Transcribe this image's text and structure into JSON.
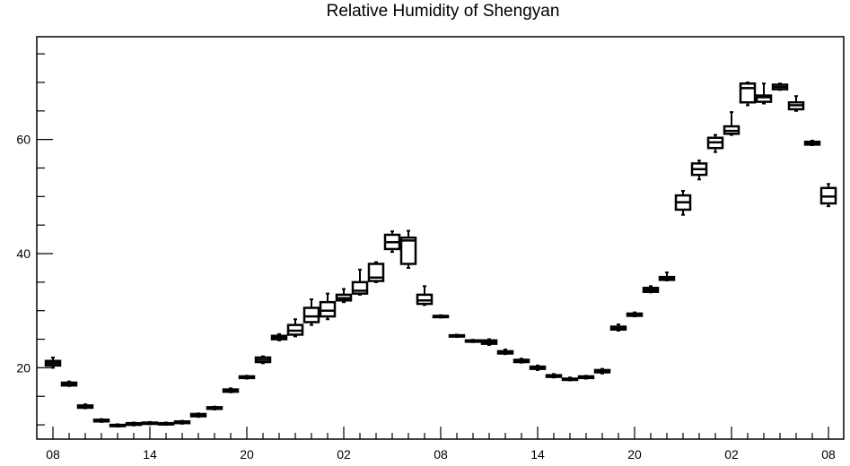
{
  "chart_data": {
    "type": "box",
    "title": "Relative Humidity of Shengyan",
    "xlabel": "",
    "ylabel": "",
    "ylim": [
      7.5,
      78
    ],
    "y_ticks": [
      20,
      40,
      60
    ],
    "y_tick_labels": [
      "20",
      "40",
      "60"
    ],
    "x_tick_labels": [
      "08",
      "14",
      "20",
      "02",
      "08",
      "14",
      "20",
      "02",
      "08"
    ],
    "x_tick_hours": [
      0,
      6,
      12,
      18,
      24,
      30,
      36,
      42,
      48
    ],
    "grid": false,
    "boxes": [
      {
        "x": 0,
        "min": 20.0,
        "q1": 20.4,
        "median": 20.8,
        "q3": 21.2,
        "max": 21.8
      },
      {
        "x": 1,
        "min": 16.8,
        "q1": 16.9,
        "median": 17.1,
        "q3": 17.4,
        "max": 17.6
      },
      {
        "x": 2,
        "min": 12.9,
        "q1": 13.0,
        "median": 13.2,
        "q3": 13.4,
        "max": 13.6
      },
      {
        "x": 3,
        "min": 10.5,
        "q1": 10.6,
        "median": 10.7,
        "q3": 10.9,
        "max": 11.0
      },
      {
        "x": 4,
        "min": 9.7,
        "q1": 9.8,
        "median": 9.9,
        "q3": 10.0,
        "max": 10.1
      },
      {
        "x": 5,
        "min": 9.9,
        "q1": 10.0,
        "median": 10.1,
        "q3": 10.3,
        "max": 10.4
      },
      {
        "x": 6,
        "min": 10.1,
        "q1": 10.2,
        "median": 10.3,
        "q3": 10.4,
        "max": 10.5
      },
      {
        "x": 7,
        "min": 10.0,
        "q1": 10.1,
        "median": 10.2,
        "q3": 10.3,
        "max": 10.4
      },
      {
        "x": 8,
        "min": 10.2,
        "q1": 10.3,
        "median": 10.4,
        "q3": 10.6,
        "max": 10.7
      },
      {
        "x": 9,
        "min": 11.4,
        "q1": 11.5,
        "median": 11.7,
        "q3": 11.9,
        "max": 12.0
      },
      {
        "x": 10,
        "min": 12.7,
        "q1": 12.8,
        "median": 12.9,
        "q3": 13.1,
        "max": 13.2
      },
      {
        "x": 11,
        "min": 15.7,
        "q1": 15.8,
        "median": 16.0,
        "q3": 16.2,
        "max": 16.4
      },
      {
        "x": 12,
        "min": 18.1,
        "q1": 18.2,
        "median": 18.3,
        "q3": 18.5,
        "max": 18.6
      },
      {
        "x": 13,
        "min": 20.8,
        "q1": 21.0,
        "median": 21.4,
        "q3": 21.8,
        "max": 22.0
      },
      {
        "x": 14,
        "min": 24.8,
        "q1": 25.0,
        "median": 25.3,
        "q3": 25.6,
        "max": 25.9
      },
      {
        "x": 15,
        "min": 25.5,
        "q1": 25.8,
        "median": 26.5,
        "q3": 27.5,
        "max": 28.5
      },
      {
        "x": 16,
        "min": 27.5,
        "q1": 28.0,
        "median": 29.0,
        "q3": 30.5,
        "max": 32.0
      },
      {
        "x": 17,
        "min": 28.5,
        "q1": 29.0,
        "median": 30.0,
        "q3": 31.5,
        "max": 33.0
      },
      {
        "x": 18,
        "min": 31.5,
        "q1": 31.8,
        "median": 32.2,
        "q3": 32.8,
        "max": 33.8
      },
      {
        "x": 19,
        "min": 32.8,
        "q1": 33.0,
        "median": 33.5,
        "q3": 35.0,
        "max": 37.2
      },
      {
        "x": 20,
        "min": 35.0,
        "q1": 35.2,
        "median": 35.8,
        "q3": 38.2,
        "max": 38.5
      },
      {
        "x": 21,
        "min": 40.3,
        "q1": 40.8,
        "median": 42.0,
        "q3": 43.3,
        "max": 43.9
      },
      {
        "x": 22,
        "min": 37.5,
        "q1": 38.2,
        "median": 42.3,
        "q3": 42.8,
        "max": 44.0
      },
      {
        "x": 23,
        "min": 31.0,
        "q1": 31.2,
        "median": 31.8,
        "q3": 32.8,
        "max": 34.3
      },
      {
        "x": 24,
        "min": 28.8,
        "q1": 28.9,
        "median": 29.0,
        "q3": 29.1,
        "max": 29.2
      },
      {
        "x": 25,
        "min": 25.4,
        "q1": 25.5,
        "median": 25.6,
        "q3": 25.7,
        "max": 25.8
      },
      {
        "x": 26,
        "min": 24.5,
        "q1": 24.6,
        "median": 24.7,
        "q3": 24.8,
        "max": 24.9
      },
      {
        "x": 27,
        "min": 24.0,
        "q1": 24.2,
        "median": 24.5,
        "q3": 24.8,
        "max": 25.0
      },
      {
        "x": 28,
        "min": 22.4,
        "q1": 22.5,
        "median": 22.7,
        "q3": 22.9,
        "max": 23.2
      },
      {
        "x": 29,
        "min": 20.9,
        "q1": 21.0,
        "median": 21.2,
        "q3": 21.4,
        "max": 21.6
      },
      {
        "x": 30,
        "min": 19.6,
        "q1": 19.8,
        "median": 20.0,
        "q3": 20.2,
        "max": 20.4
      },
      {
        "x": 31,
        "min": 18.3,
        "q1": 18.4,
        "median": 18.5,
        "q3": 18.7,
        "max": 18.9
      },
      {
        "x": 32,
        "min": 17.8,
        "q1": 17.9,
        "median": 18.0,
        "q3": 18.1,
        "max": 18.3
      },
      {
        "x": 33,
        "min": 18.1,
        "q1": 18.2,
        "median": 18.3,
        "q3": 18.5,
        "max": 18.6
      },
      {
        "x": 34,
        "min": 19.0,
        "q1": 19.2,
        "median": 19.4,
        "q3": 19.6,
        "max": 19.8
      },
      {
        "x": 35,
        "min": 26.5,
        "q1": 26.7,
        "median": 26.9,
        "q3": 27.2,
        "max": 27.6
      },
      {
        "x": 36,
        "min": 29.0,
        "q1": 29.1,
        "median": 29.3,
        "q3": 29.5,
        "max": 29.7
      },
      {
        "x": 37,
        "min": 33.2,
        "q1": 33.3,
        "median": 33.6,
        "q3": 34.0,
        "max": 34.3
      },
      {
        "x": 38,
        "min": 35.3,
        "q1": 35.4,
        "median": 35.6,
        "q3": 35.9,
        "max": 36.7
      },
      {
        "x": 39,
        "min": 46.8,
        "q1": 47.7,
        "median": 49.0,
        "q3": 50.2,
        "max": 51.0
      },
      {
        "x": 40,
        "min": 53.0,
        "q1": 53.8,
        "median": 54.8,
        "q3": 55.8,
        "max": 56.3
      },
      {
        "x": 41,
        "min": 57.8,
        "q1": 58.5,
        "median": 59.5,
        "q3": 60.3,
        "max": 60.8
      },
      {
        "x": 42,
        "min": 60.8,
        "q1": 61.0,
        "median": 61.5,
        "q3": 62.3,
        "max": 64.8
      },
      {
        "x": 43,
        "min": 66.0,
        "q1": 66.5,
        "median": 69.0,
        "q3": 69.8,
        "max": 70.0
      },
      {
        "x": 44,
        "min": 66.3,
        "q1": 66.6,
        "median": 67.4,
        "q3": 67.7,
        "max": 69.8
      },
      {
        "x": 45,
        "min": 68.7,
        "q1": 68.8,
        "median": 69.2,
        "q3": 69.6,
        "max": 69.8
      },
      {
        "x": 46,
        "min": 65.0,
        "q1": 65.3,
        "median": 66.0,
        "q3": 66.5,
        "max": 67.6
      },
      {
        "x": 47,
        "min": 59.0,
        "q1": 59.1,
        "median": 59.4,
        "q3": 59.6,
        "max": 59.8
      },
      {
        "x": 48,
        "min": 48.3,
        "q1": 48.8,
        "median": 50.0,
        "q3": 51.5,
        "max": 52.2
      }
    ]
  }
}
